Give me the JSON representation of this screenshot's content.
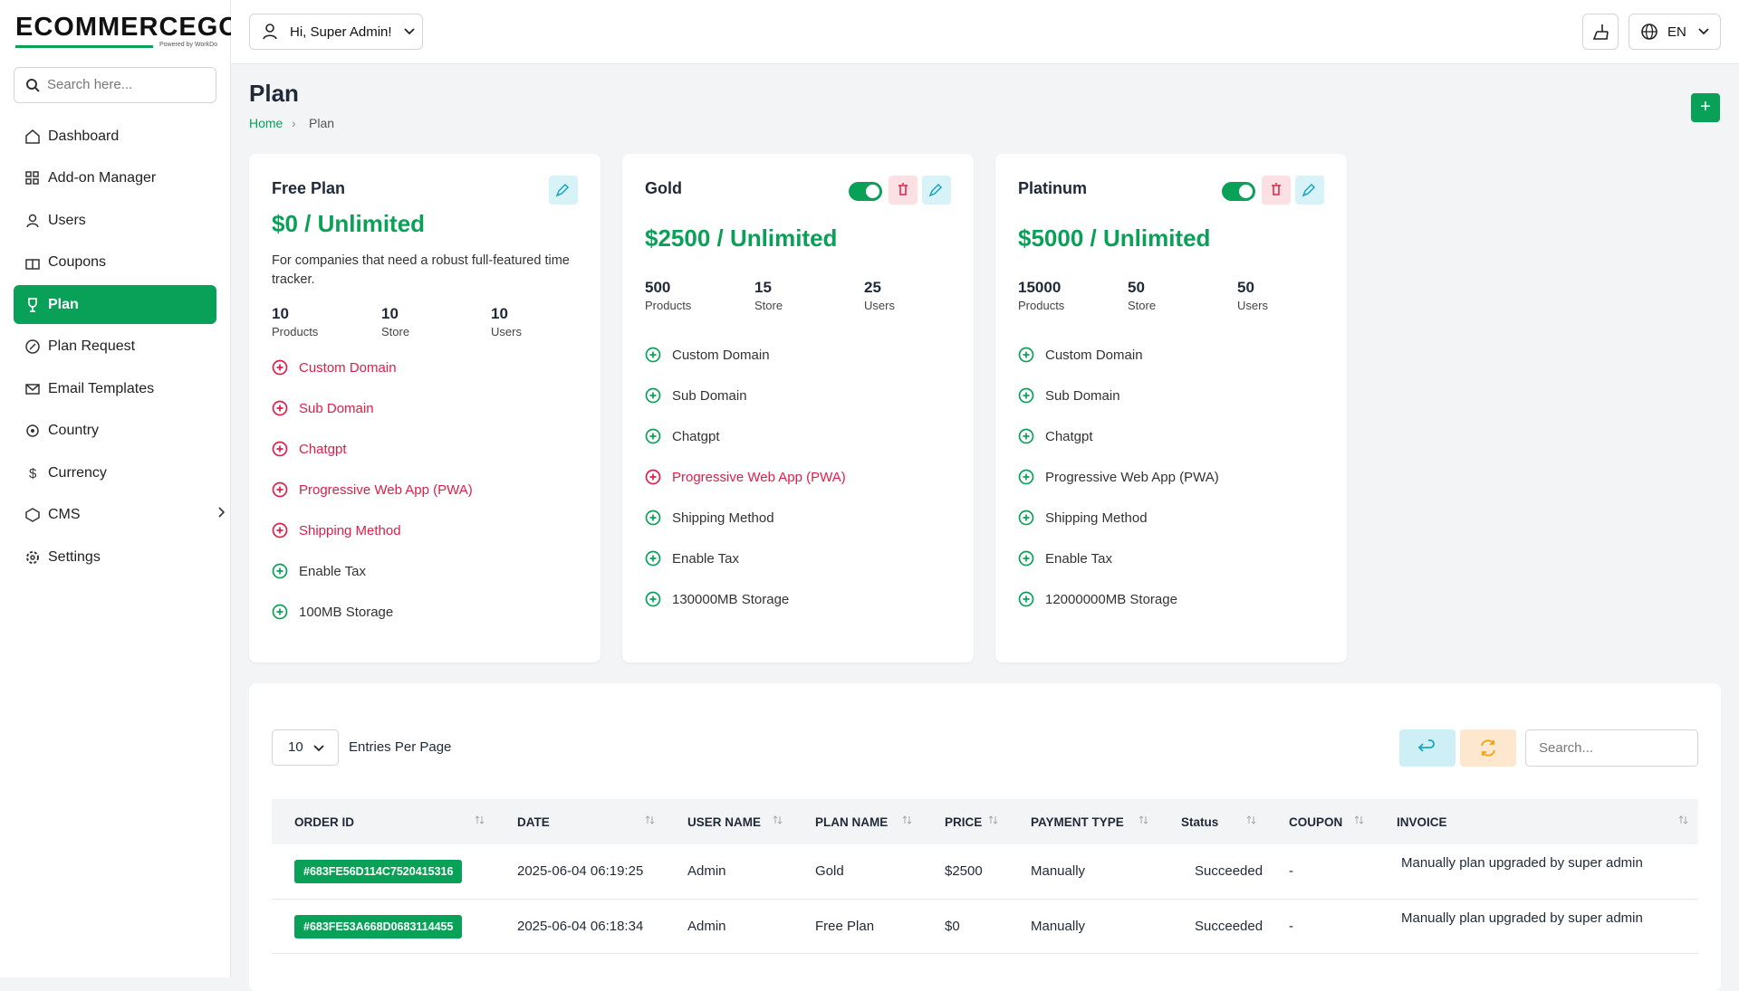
{
  "brand": {
    "logo": "ECOMMERCEGO",
    "powered": "Powered by WorkDo"
  },
  "sidebar": {
    "search_placeholder": "Search here...",
    "items": [
      {
        "label": "Dashboard"
      },
      {
        "label": "Add-on Manager"
      },
      {
        "label": "Users"
      },
      {
        "label": "Coupons"
      },
      {
        "label": "Plan",
        "active": true
      },
      {
        "label": "Plan Request"
      },
      {
        "label": "Email Templates"
      },
      {
        "label": "Country"
      },
      {
        "label": "Currency"
      },
      {
        "label": "CMS",
        "submenu": true
      },
      {
        "label": "Settings"
      }
    ]
  },
  "header": {
    "greeting": "Hi, Super Admin!",
    "language": "EN"
  },
  "page": {
    "title": "Plan",
    "breadcrumb": [
      "Home",
      "Plan"
    ],
    "add_button": "+"
  },
  "plans": [
    {
      "name": "Free Plan",
      "price": "$0 / Unlimited",
      "description": "For companies that need a robust full-featured time tracker.",
      "stats": [
        {
          "value": 10,
          "label": "Products"
        },
        {
          "value": 10,
          "label": "Store"
        },
        {
          "value": 10,
          "label": "Users"
        }
      ],
      "features": [
        {
          "label": "Custom Domain",
          "included": false
        },
        {
          "label": "Sub Domain",
          "included": false
        },
        {
          "label": "Chatgpt",
          "included": false
        },
        {
          "label": "Progressive Web App (PWA)",
          "included": false
        },
        {
          "label": "Shipping Method",
          "included": false
        },
        {
          "label": "Enable Tax",
          "included": true
        },
        {
          "label": "100MB Storage",
          "included": true
        }
      ]
    },
    {
      "name": "Gold",
      "price": "$2500 / Unlimited",
      "active": true,
      "stats": [
        {
          "value": 500,
          "label": "Products"
        },
        {
          "value": 15,
          "label": "Store"
        },
        {
          "value": 25,
          "label": "Users"
        }
      ],
      "features": [
        {
          "label": "Custom Domain",
          "included": true
        },
        {
          "label": "Sub Domain",
          "included": true
        },
        {
          "label": "Chatgpt",
          "included": true
        },
        {
          "label": "Progressive Web App (PWA)",
          "included": false
        },
        {
          "label": "Shipping Method",
          "included": true
        },
        {
          "label": "Enable Tax",
          "included": true
        },
        {
          "label": "130000MB Storage",
          "included": true
        }
      ]
    },
    {
      "name": "Platinum",
      "price": "$5000 / Unlimited",
      "active": true,
      "stats": [
        {
          "value": 15000,
          "label": "Products"
        },
        {
          "value": 50,
          "label": "Store"
        },
        {
          "value": 50,
          "label": "Users"
        }
      ],
      "features": [
        {
          "label": "Custom Domain",
          "included": true
        },
        {
          "label": "Sub Domain",
          "included": true
        },
        {
          "label": "Chatgpt",
          "included": true
        },
        {
          "label": "Progressive Web App (PWA)",
          "included": true
        },
        {
          "label": "Shipping Method",
          "included": true
        },
        {
          "label": "Enable Tax",
          "included": true
        },
        {
          "label": "12000000MB Storage",
          "included": true
        }
      ]
    }
  ],
  "table": {
    "entries": "10",
    "entries_label": "Entries Per Page",
    "search_placeholder": "Search...",
    "columns": [
      "ORDER ID",
      "DATE",
      "USER NAME",
      "PLAN NAME",
      "PRICE",
      "PAYMENT TYPE",
      "Status",
      "COUPON",
      "INVOICE"
    ],
    "rows": [
      [
        "#683FE56D114C7520415316",
        "2025-06-04 06:19:25",
        "Admin",
        "Gold",
        "$2500",
        "Manually",
        "Succeeded",
        "-",
        "Manually plan upgraded by super admin"
      ],
      [
        "#683FE53A668D0683114455",
        "2025-06-04 06:18:34",
        "Admin",
        "Free Plan",
        "$0",
        "Manually",
        "Succeeded",
        "-",
        "Manually plan upgraded by super admin"
      ]
    ]
  }
}
